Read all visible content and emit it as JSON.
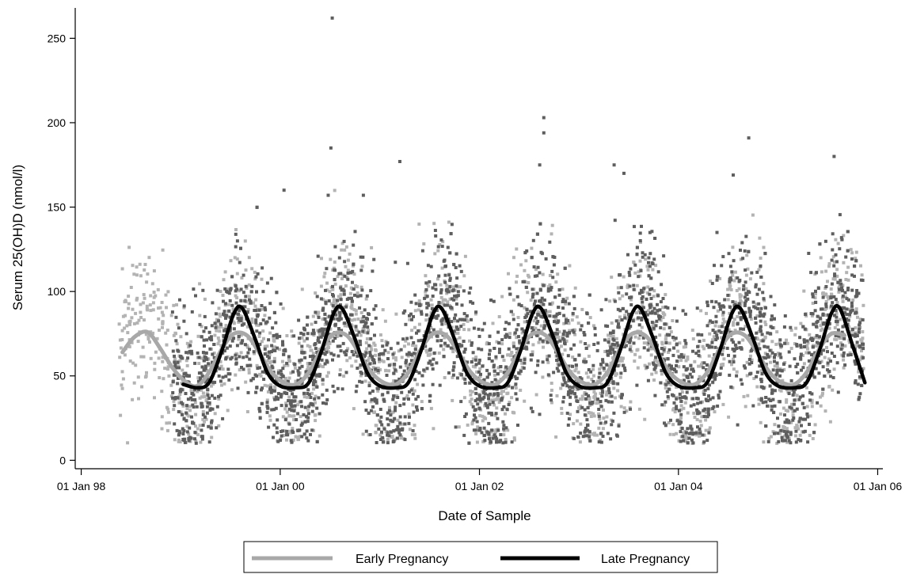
{
  "chart_data": {
    "type": "scatter",
    "title": "",
    "xlabel": "Date of Sample",
    "ylabel": "Serum 25(OH)D (nmol/l)",
    "xlim": [
      "1997-12-10",
      "2006-01-20"
    ],
    "ylim": [
      -5,
      268
    ],
    "x_ticks": [
      {
        "date": "1998-01-01",
        "label": "01 Jan 98"
      },
      {
        "date": "2000-01-01",
        "label": "01 Jan 00"
      },
      {
        "date": "2002-01-01",
        "label": "01 Jan 02"
      },
      {
        "date": "2004-01-01",
        "label": "01 Jan 04"
      },
      {
        "date": "2006-01-01",
        "label": "01 Jan 06"
      }
    ],
    "y_ticks": [
      0,
      50,
      100,
      150,
      200,
      250
    ],
    "grid": false,
    "legend": {
      "position": "bottom",
      "entries": [
        {
          "label": "Early Pregnancy",
          "color": "#a8a8a8"
        },
        {
          "label": "Late Pregnancy",
          "color": "#000000"
        }
      ]
    },
    "series": [
      {
        "name": "Early Pregnancy",
        "kind": "line",
        "color": "#a8a8a8",
        "x": [
          "1998-06-01",
          "1998-07-15",
          "1998-09-01",
          "1998-10-15",
          "1998-12-01",
          "1999-01-15",
          "1999-03-01",
          "1999-04-15",
          "1999-06-01",
          "1999-07-15",
          "1999-09-01",
          "1999-10-15",
          "1999-12-01",
          "2000-01-15",
          "2000-03-01",
          "2000-04-15",
          "2000-06-01",
          "2000-07-15",
          "2000-09-01",
          "2000-10-15",
          "2000-12-01",
          "2001-01-15",
          "2001-03-01",
          "2001-04-15",
          "2001-06-01",
          "2001-07-15",
          "2001-09-01",
          "2001-10-15",
          "2001-12-01",
          "2002-01-15",
          "2002-03-01",
          "2002-04-15",
          "2002-06-01",
          "2002-07-15",
          "2002-09-01",
          "2002-10-15",
          "2002-12-01",
          "2003-01-15",
          "2003-03-01",
          "2003-04-15",
          "2003-06-01",
          "2003-07-15",
          "2003-09-01",
          "2003-10-15",
          "2003-12-01",
          "2004-01-15",
          "2004-03-01",
          "2004-04-15",
          "2004-06-01",
          "2004-07-15",
          "2004-09-01",
          "2004-10-15",
          "2004-12-01",
          "2005-01-15",
          "2005-03-01",
          "2005-04-15",
          "2005-06-01",
          "2005-07-15",
          "2005-09-01"
        ],
        "y": [
          64,
          73,
          76,
          67,
          55,
          47,
          44,
          52,
          66,
          75,
          74,
          64,
          52,
          46,
          45,
          52,
          66,
          75,
          74,
          64,
          52,
          46,
          45,
          52,
          66,
          75,
          74,
          64,
          52,
          46,
          45,
          52,
          66,
          75,
          74,
          64,
          52,
          46,
          45,
          52,
          66,
          75,
          74,
          64,
          52,
          46,
          45,
          52,
          66,
          75,
          74,
          64,
          52,
          46,
          45,
          52,
          66,
          75,
          74
        ]
      },
      {
        "name": "Late Pregnancy",
        "kind": "line",
        "color": "#000000",
        "x": [
          "1999-01-10",
          "1999-03-01",
          "1999-04-15",
          "1999-06-01",
          "1999-07-15",
          "1999-08-15",
          "1999-10-01",
          "1999-11-15",
          "2000-01-01",
          "2000-03-01",
          "2000-04-15",
          "2000-06-01",
          "2000-07-15",
          "2000-08-15",
          "2000-10-01",
          "2000-11-15",
          "2001-01-01",
          "2001-03-01",
          "2001-04-15",
          "2001-06-01",
          "2001-07-15",
          "2001-08-15",
          "2001-10-01",
          "2001-11-15",
          "2002-01-01",
          "2002-03-01",
          "2002-04-15",
          "2002-06-01",
          "2002-07-15",
          "2002-08-15",
          "2002-10-01",
          "2002-11-15",
          "2003-01-01",
          "2003-03-01",
          "2003-04-15",
          "2003-06-01",
          "2003-07-15",
          "2003-08-15",
          "2003-10-01",
          "2003-11-15",
          "2004-01-01",
          "2004-03-01",
          "2004-04-15",
          "2004-06-01",
          "2004-07-15",
          "2004-08-15",
          "2004-10-01",
          "2004-11-15",
          "2005-01-01",
          "2005-03-01",
          "2005-04-15",
          "2005-06-01",
          "2005-07-15",
          "2005-08-15",
          "2005-10-01",
          "2005-11-15"
        ],
        "y": [
          45,
          43,
          46,
          65,
          87,
          90,
          72,
          52,
          44,
          43,
          46,
          65,
          87,
          90,
          72,
          52,
          44,
          43,
          46,
          65,
          87,
          90,
          72,
          52,
          44,
          43,
          46,
          65,
          87,
          90,
          72,
          52,
          44,
          43,
          46,
          65,
          87,
          90,
          72,
          52,
          44,
          43,
          46,
          65,
          87,
          90,
          72,
          52,
          44,
          43,
          46,
          65,
          87,
          90,
          68,
          46
        ]
      }
    ],
    "scatter_groups": [
      {
        "name": "Early Pregnancy",
        "color": "#b3b3b3",
        "note_count_approx": 2000
      },
      {
        "name": "Late Pregnancy",
        "color": "#5e5e5e",
        "note_count_approx": 3000
      }
    ],
    "notable_points": [
      {
        "x": "2000-07-10",
        "y": 262
      },
      {
        "x": "2000-07-05",
        "y": 185
      },
      {
        "x": "2002-08-25",
        "y": 203
      },
      {
        "x": "2002-08-25",
        "y": 194
      },
      {
        "x": "2004-09-15",
        "y": 191
      },
      {
        "x": "2005-07-25",
        "y": 180
      },
      {
        "x": "2001-03-15",
        "y": 177
      },
      {
        "x": "2003-05-10",
        "y": 175
      },
      {
        "x": "2003-06-15",
        "y": 170
      },
      {
        "x": "2002-08-10",
        "y": 175
      },
      {
        "x": "2000-01-15",
        "y": 160
      },
      {
        "x": "2004-07-20",
        "y": 169
      },
      {
        "x": "2000-06-25",
        "y": 157
      },
      {
        "x": "2000-11-01",
        "y": 157
      }
    ]
  }
}
